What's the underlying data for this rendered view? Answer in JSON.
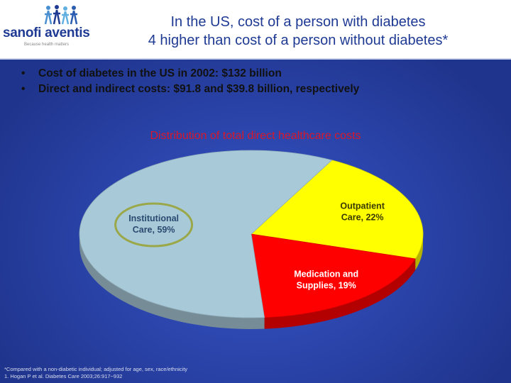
{
  "slide": {
    "logo": {
      "wordmark": "sanofi aventis",
      "tagline": "Because health matters"
    },
    "title_lines": [
      "In the US, cost of a person with diabetes",
      "4 higher than cost of a person without diabetes*"
    ],
    "bullets": [
      "Cost of diabetes in the US in 2002: $132 billion",
      "Direct and indirect costs: $91.8 and $39.8 billion, respectively"
    ],
    "bullet_symbol": "•",
    "footnotes": [
      "*Compared with a non-diabetic individual; adjusted for age, sex, race/ethnicity",
      "1. Hogan P et al. Diabetes Care 2003;26:917−932"
    ]
  },
  "chart_data": {
    "type": "pie",
    "title": "Distribution of total direct healthcare costs",
    "slices": [
      {
        "label_lines": [
          "Outpatient",
          "Care, 22%"
        ],
        "value": 22,
        "color": "#ffff00",
        "text_color": "#3a3a00"
      },
      {
        "label_lines": [
          "Medication and",
          "Supplies, 19%"
        ],
        "value": 19,
        "color": "#ff0000",
        "text_color": "#ffffff"
      },
      {
        "label_lines": [
          "Institutional",
          "Care, 59%"
        ],
        "value": 59,
        "color": "#a8c9d8",
        "text_color": "#2a4a70",
        "highlighted": true
      }
    ],
    "style": "3d"
  }
}
